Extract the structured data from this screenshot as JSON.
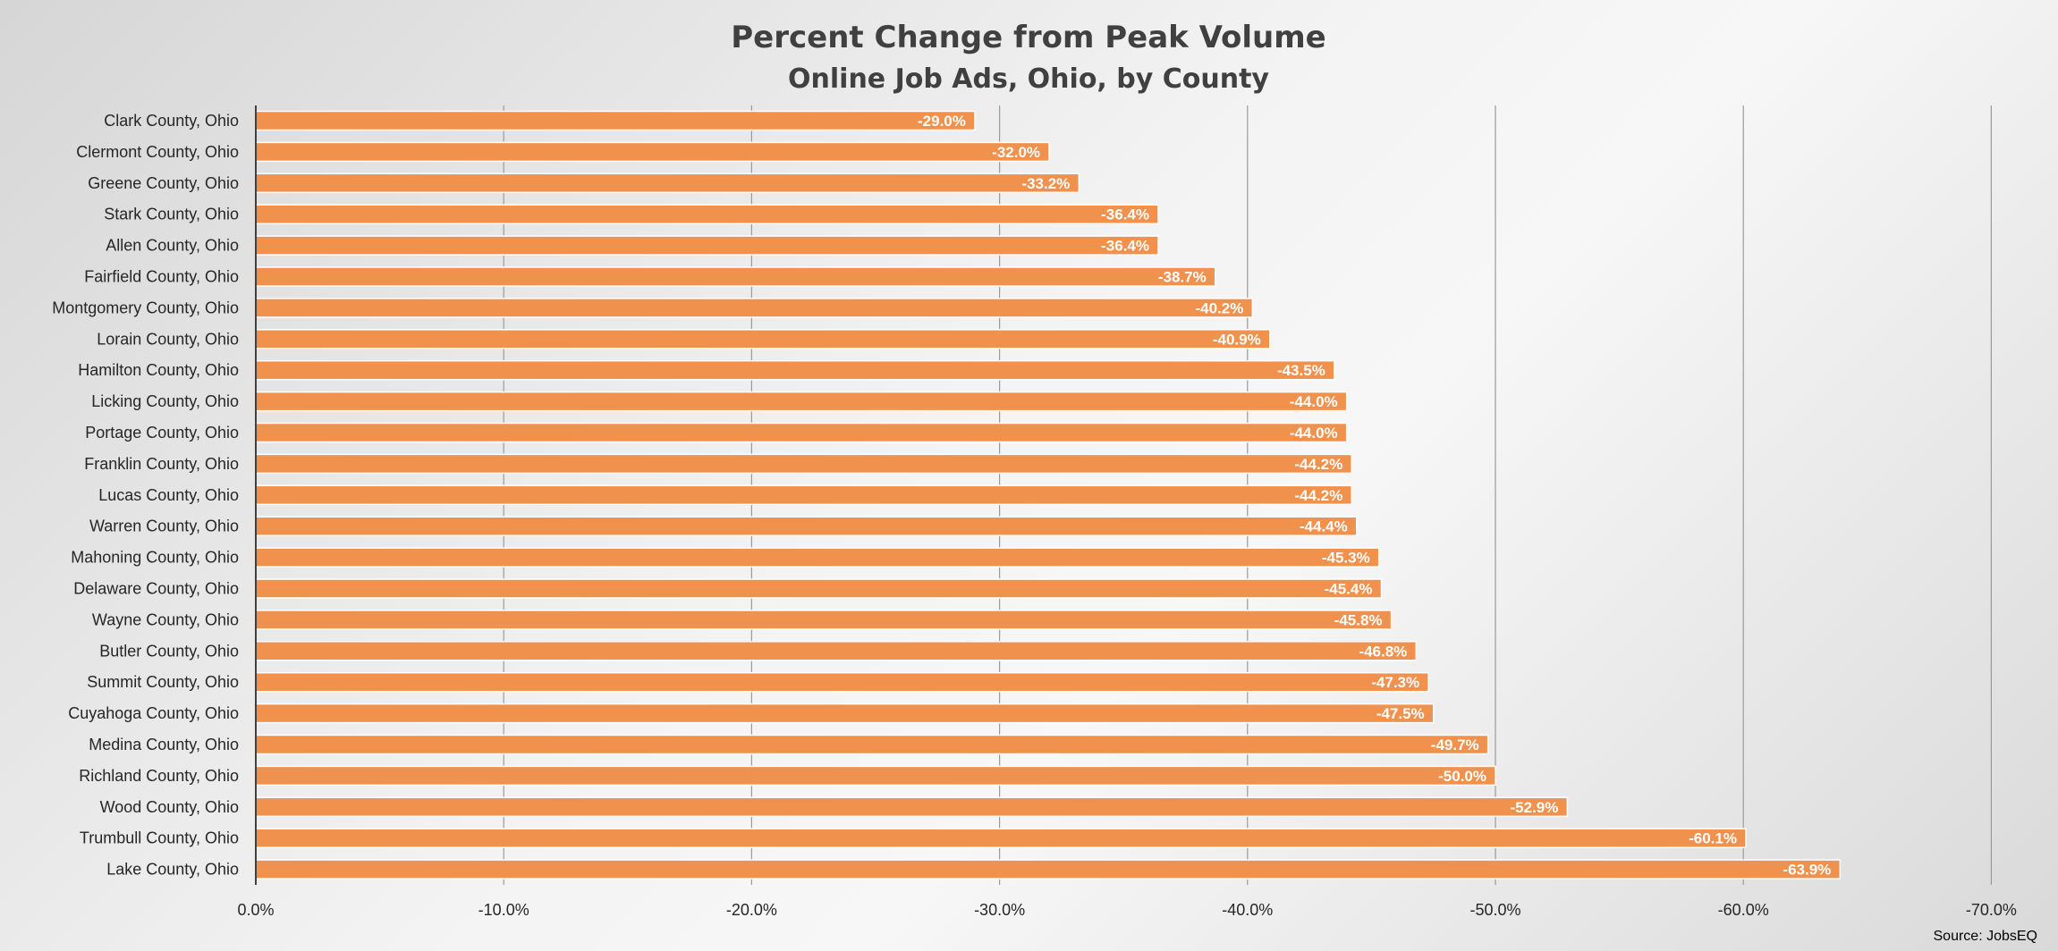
{
  "chart_data": {
    "type": "bar",
    "orientation": "horizontal",
    "title": "Percent Change from Peak Volume",
    "subtitle": "Online Job Ads, Ohio, by County",
    "source": "Source: JobsEQ",
    "categories": [
      "Clark County, Ohio",
      "Clermont County, Ohio",
      "Greene County, Ohio",
      "Stark County, Ohio",
      "Allen County, Ohio",
      "Fairfield County, Ohio",
      "Montgomery County, Ohio",
      "Lorain County, Ohio",
      "Hamilton County, Ohio",
      "Licking County, Ohio",
      "Portage County, Ohio",
      "Franklin County, Ohio",
      "Lucas County, Ohio",
      "Warren County, Ohio",
      "Mahoning County, Ohio",
      "Delaware County, Ohio",
      "Wayne County, Ohio",
      "Butler County, Ohio",
      "Summit County, Ohio",
      "Cuyahoga County, Ohio",
      "Medina County, Ohio",
      "Richland County, Ohio",
      "Wood County, Ohio",
      "Trumbull County, Ohio",
      "Lake County, Ohio"
    ],
    "values": [
      -29.0,
      -32.0,
      -33.2,
      -36.4,
      -36.4,
      -38.7,
      -40.2,
      -40.9,
      -43.5,
      -44.0,
      -44.0,
      -44.2,
      -44.2,
      -44.4,
      -45.3,
      -45.4,
      -45.8,
      -46.8,
      -47.3,
      -47.5,
      -49.7,
      -50.0,
      -52.9,
      -60.1,
      -63.9
    ],
    "data_labels": [
      "-29.0%",
      "-32.0%",
      "-33.2%",
      "-36.4%",
      "-36.4%",
      "-38.7%",
      "-40.2%",
      "-40.9%",
      "-43.5%",
      "-44.0%",
      "-44.0%",
      "-44.2%",
      "-44.2%",
      "-44.4%",
      "-45.3%",
      "-45.4%",
      "-45.8%",
      "-46.8%",
      "-47.3%",
      "-47.5%",
      "-49.7%",
      "-50.0%",
      "-52.9%",
      "-60.1%",
      "-63.9%"
    ],
    "xlim": [
      0,
      -70
    ],
    "xticks": [
      0,
      -10,
      -20,
      -30,
      -40,
      -50,
      -60,
      -70
    ],
    "xtick_labels": [
      "0.0%",
      "-10.0%",
      "-20.0%",
      "-30.0%",
      "-40.0%",
      "-50.0%",
      "-60.0%",
      "-70.0%"
    ],
    "grid": "vertical",
    "legend": "none",
    "bar_color": "#f0914d",
    "bar_edge_color": "#ffffff",
    "gridline_color": "#9a9a9a",
    "axis_color": "#404040"
  }
}
